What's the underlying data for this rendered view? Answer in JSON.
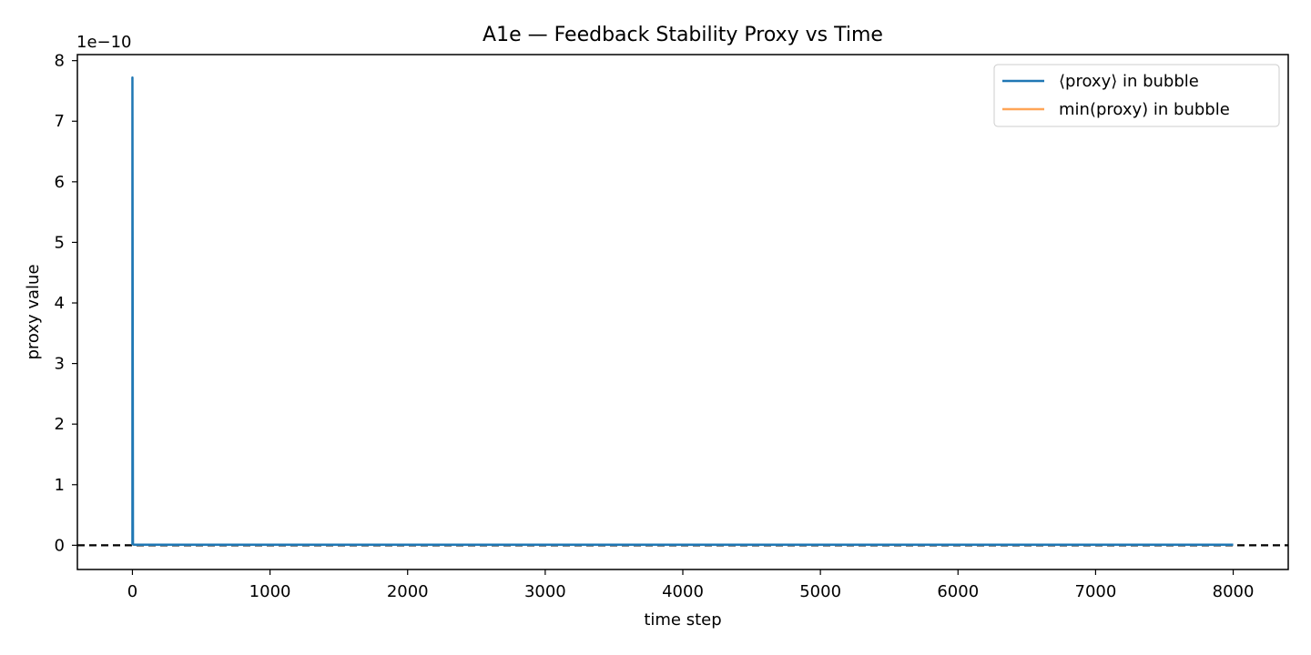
{
  "chart_data": {
    "type": "line",
    "title": "A1e — Feedback Stability Proxy vs Time",
    "xlabel": "time step",
    "ylabel": "proxy value",
    "y_offset_label": "1e−10",
    "xlim": [
      -400,
      8400
    ],
    "ylim": [
      -0.4,
      8.1
    ],
    "y_scale_factor": 1e-10,
    "x_ticks": [
      0,
      1000,
      2000,
      3000,
      4000,
      5000,
      6000,
      7000,
      8000
    ],
    "y_ticks": [
      0,
      1,
      2,
      3,
      4,
      5,
      6,
      7,
      8
    ],
    "grid": false,
    "legend": {
      "position": "top-right"
    },
    "reference_line": {
      "y": 0,
      "style": "dashed",
      "color": "#000000"
    },
    "series": [
      {
        "name": "⟨proxy⟩ in bubble",
        "color": "#1f77b4",
        "x": [
          0,
          0,
          4,
          10,
          100,
          1000,
          2000,
          3000,
          4000,
          5000,
          6000,
          7000,
          8000
        ],
        "y": [
          0,
          7.72,
          0.02,
          0.01,
          0.01,
          0.01,
          0.01,
          0.01,
          0.01,
          0.01,
          0.01,
          0.01,
          0.01
        ]
      },
      {
        "name": "min(proxy) in bubble",
        "color": "#ffa557",
        "x": [
          0,
          1000,
          2000,
          3000,
          4000,
          5000,
          6000,
          7000,
          8000
        ],
        "y": [
          0.01,
          0.01,
          0.01,
          0.01,
          0.01,
          0.01,
          0.01,
          0.01,
          0.01
        ]
      }
    ]
  }
}
